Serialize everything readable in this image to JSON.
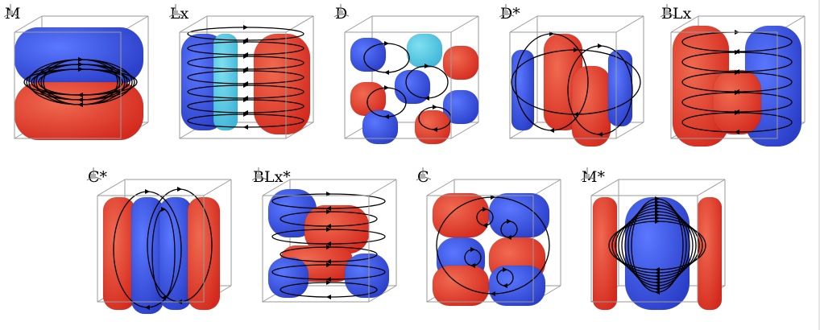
{
  "figure": {
    "panels": [
      {
        "label": "M",
        "pattern": "horizontal-layers"
      },
      {
        "label": "Lx",
        "pattern": "side-columns"
      },
      {
        "label": "D",
        "pattern": "octant-blobs"
      },
      {
        "label": "D*",
        "pattern": "central-columns"
      },
      {
        "label": "BLx",
        "pattern": "twisted-columns"
      },
      {
        "label": "C*",
        "pattern": "four-columns"
      },
      {
        "label": "BLx*",
        "pattern": "diagonal-rolls"
      },
      {
        "label": "C",
        "pattern": "stacked-blobs"
      },
      {
        "label": "M*",
        "pattern": "central-column-with-walls"
      }
    ],
    "colors": {
      "positive": "#d42a1e",
      "negative": "#2a3ec8",
      "transition": "#e8c230",
      "cyan": "#3fb5d8",
      "streamline": "#000000",
      "box": "#9a9a9a"
    },
    "icons": [
      "axis-triad-icon"
    ]
  }
}
